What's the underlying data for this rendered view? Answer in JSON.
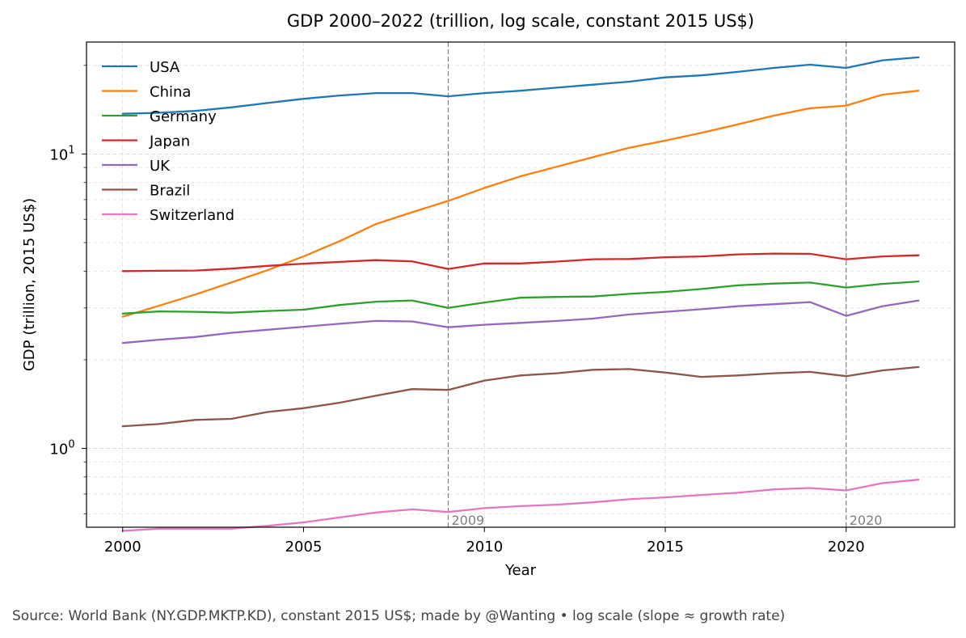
{
  "chart_data": {
    "type": "line",
    "title": "GDP 2000–2022 (trillion, log scale, constant 2015 US$)",
    "xlabel": "Year",
    "ylabel": "GDP (trillion, 2015 US$)",
    "y_scale": "log",
    "xlim": [
      1999,
      2023
    ],
    "ylim": [
      0.54,
      24
    ],
    "x_ticks": [
      2000,
      2005,
      2010,
      2015,
      2020
    ],
    "y_tick_labels": [
      {
        "value": 1,
        "base": "10",
        "exp": "0"
      },
      {
        "value": 10,
        "base": "10",
        "exp": "1"
      }
    ],
    "grid": true,
    "legend_position": "upper left",
    "x": [
      2000,
      2001,
      2002,
      2003,
      2004,
      2005,
      2006,
      2007,
      2008,
      2009,
      2010,
      2011,
      2012,
      2013,
      2014,
      2015,
      2016,
      2017,
      2018,
      2019,
      2020,
      2021,
      2022
    ],
    "series": [
      {
        "name": "USA",
        "color": "#1f77b4",
        "values": [
          13.7,
          13.8,
          14.0,
          14.4,
          14.9,
          15.4,
          15.8,
          16.1,
          16.1,
          15.7,
          16.1,
          16.4,
          16.8,
          17.2,
          17.6,
          18.2,
          18.5,
          19.0,
          19.6,
          20.1,
          19.6,
          20.8,
          21.3
        ]
      },
      {
        "name": "China",
        "color": "#ff7f0e",
        "values": [
          2.8,
          3.05,
          3.33,
          3.66,
          4.03,
          4.49,
          5.06,
          5.78,
          6.34,
          6.93,
          7.67,
          8.4,
          9.05,
          9.75,
          10.5,
          11.1,
          11.8,
          12.6,
          13.5,
          14.3,
          14.6,
          15.9,
          16.4
        ]
      },
      {
        "name": "Germany",
        "color": "#2ca02c",
        "values": [
          2.87,
          2.92,
          2.91,
          2.89,
          2.93,
          2.96,
          3.07,
          3.15,
          3.18,
          3.0,
          3.13,
          3.25,
          3.27,
          3.28,
          3.35,
          3.4,
          3.48,
          3.58,
          3.63,
          3.66,
          3.52,
          3.62,
          3.69
        ]
      },
      {
        "name": "Japan",
        "color": "#d62728",
        "values": [
          4.0,
          4.01,
          4.02,
          4.08,
          4.17,
          4.24,
          4.3,
          4.36,
          4.32,
          4.07,
          4.25,
          4.25,
          4.31,
          4.39,
          4.4,
          4.46,
          4.49,
          4.56,
          4.59,
          4.58,
          4.39,
          4.49,
          4.53
        ]
      },
      {
        "name": "UK",
        "color": "#9467bd",
        "values": [
          2.28,
          2.34,
          2.39,
          2.47,
          2.53,
          2.59,
          2.65,
          2.71,
          2.7,
          2.58,
          2.63,
          2.67,
          2.71,
          2.76,
          2.85,
          2.91,
          2.97,
          3.04,
          3.09,
          3.14,
          2.82,
          3.04,
          3.18
        ]
      },
      {
        "name": "Brazil",
        "color": "#8c564b",
        "values": [
          1.19,
          1.21,
          1.25,
          1.26,
          1.33,
          1.37,
          1.43,
          1.51,
          1.59,
          1.58,
          1.7,
          1.77,
          1.8,
          1.85,
          1.86,
          1.81,
          1.75,
          1.77,
          1.8,
          1.82,
          1.76,
          1.84,
          1.89
        ]
      },
      {
        "name": "Switzerland",
        "color": "#e377c2",
        "values": [
          0.525,
          0.534,
          0.534,
          0.534,
          0.546,
          0.561,
          0.583,
          0.606,
          0.621,
          0.608,
          0.627,
          0.637,
          0.644,
          0.656,
          0.672,
          0.682,
          0.695,
          0.707,
          0.726,
          0.734,
          0.72,
          0.762,
          0.783
        ]
      }
    ],
    "annotations": [
      {
        "x": 2009,
        "label": "2009"
      },
      {
        "x": 2020,
        "label": "2020"
      }
    ]
  },
  "footer": {
    "source": "Source: World Bank (NY.GDP.MKTP.KD), constant 2015 US$; made by @Wanting • log scale (slope ≈ growth rate)"
  }
}
